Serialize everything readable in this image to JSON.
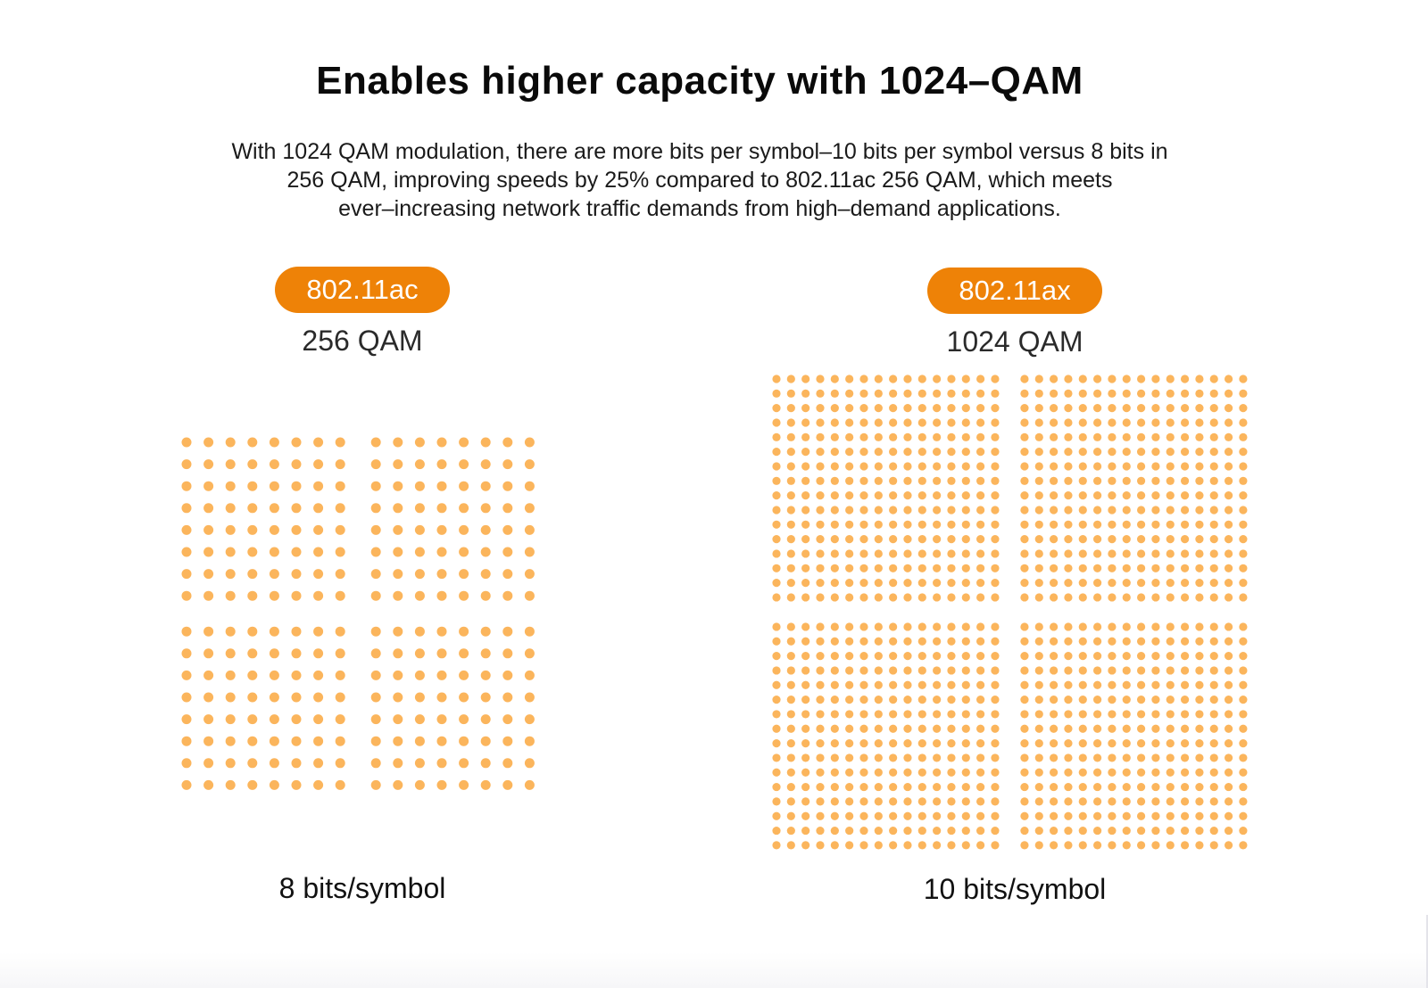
{
  "header": {
    "title": "Enables higher capacity with 1024–QAM",
    "description_lines": [
      "With 1024 QAM modulation, there are more bits per symbol–10 bits per symbol versus 8 bits in",
      "256 QAM, improving speeds by 25% compared to 802.11ac 256 QAM, which meets",
      "ever–increasing network traffic demands from high–demand applications."
    ]
  },
  "colors": {
    "accent": "#ee8207",
    "dot": "#fbb55c"
  },
  "comparison": [
    {
      "standard": "802.11ac",
      "modulation": "256 QAM",
      "bits_label": "8 bits/symbol",
      "constellation_points": 256,
      "dots_per_quadrant_side": 8
    },
    {
      "standard": "802.11ax",
      "modulation": "1024 QAM",
      "bits_label": "10 bits/symbol",
      "constellation_points": 1024,
      "dots_per_quadrant_side": 16
    }
  ]
}
